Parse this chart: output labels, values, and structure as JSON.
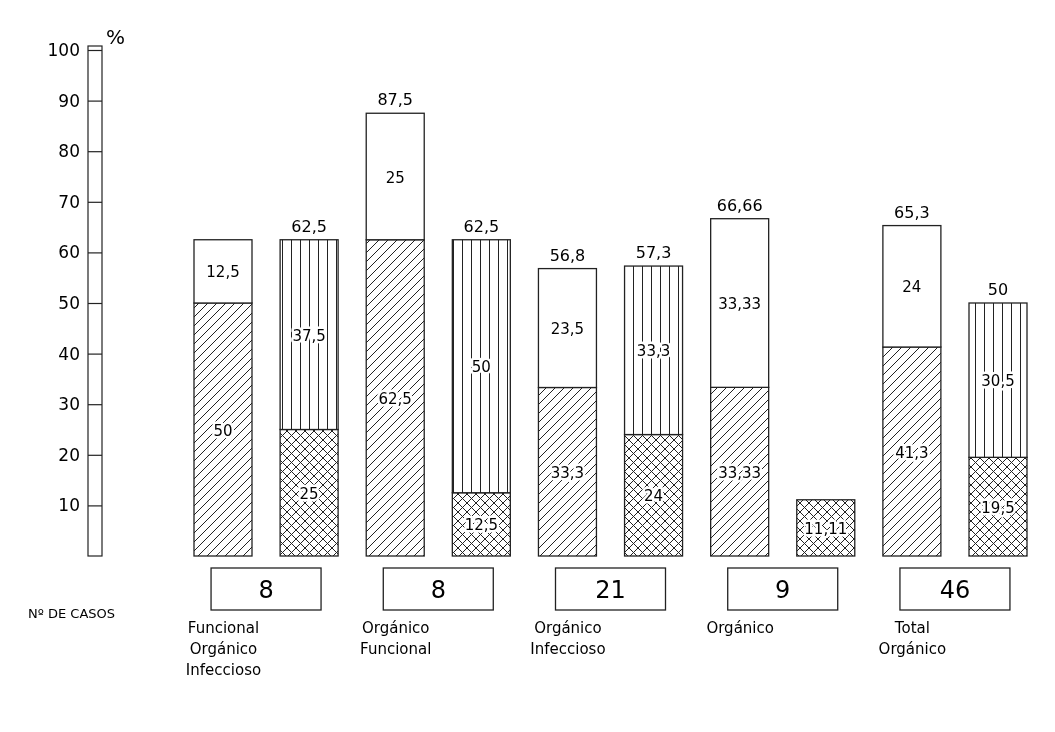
{
  "chart_data": {
    "type": "bar",
    "stacked": true,
    "ylabel": "%",
    "ylim": [
      0,
      100
    ],
    "yticks": [
      10,
      20,
      30,
      40,
      50,
      60,
      70,
      80,
      90,
      100
    ],
    "categories": [
      "Funcional Orgánico Infeccioso",
      null,
      "Orgánico Funcional",
      null,
      "Orgánico Infeccioso",
      null,
      "Orgánico",
      null,
      "Total Orgánico",
      null
    ],
    "series": [
      {
        "color": "#222222",
        "values": [
          50,
          null,
          62.5,
          null,
          33.3,
          null,
          33.33,
          null,
          41.3,
          null
        ],
        "value_labels": [
          "50",
          null,
          "62,5",
          null,
          "33,3",
          null,
          "33,33",
          null,
          "41,3",
          null
        ]
      },
      {
        "color": "#222222",
        "values": [
          null,
          25,
          null,
          12.5,
          null,
          24,
          null,
          11.11,
          null,
          19.5
        ],
        "value_labels": [
          null,
          "25",
          null,
          "12,5",
          null,
          "24",
          null,
          "11,11",
          null,
          "19,5"
        ]
      },
      {
        "color": "#222222",
        "values": [
          12.5,
          null,
          25,
          null,
          23.5,
          null,
          33.33,
          null,
          24,
          null
        ],
        "value_labels": [
          "12,5",
          null,
          "25",
          null,
          "23,5",
          null,
          "33,33",
          null,
          "24",
          null
        ]
      },
      {
        "color": "#222222",
        "values": [
          null,
          37.5,
          null,
          50,
          null,
          33.3,
          null,
          null,
          null,
          30.5
        ],
        "value_labels": [
          null,
          "37,5",
          null,
          "50",
          null,
          "33,3",
          null,
          null,
          null,
          "30,5"
        ]
      }
    ],
    "totals": [
      null,
      "62,5",
      "87,5",
      "62,5",
      "56,8",
      "57,3",
      "66,66",
      null,
      "65,3",
      "50"
    ],
    "annotations": [
      "Nº DE CASOS",
      "8",
      "8",
      "21",
      "9",
      "46"
    ]
  }
}
